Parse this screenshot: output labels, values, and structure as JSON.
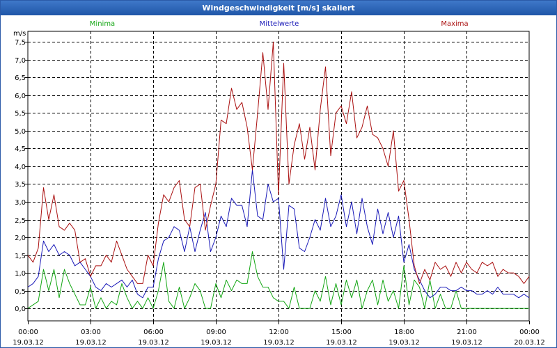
{
  "window": {
    "title": "Windgeschwindigkeit [m/s] skaliert"
  },
  "chart_data": {
    "type": "line",
    "title": "Windgeschwindigkeit [m/s] skaliert",
    "ylabel": "m/s",
    "xlabel": "",
    "ylim": [
      -0.35,
      7.8
    ],
    "xlim": [
      0,
      24
    ],
    "grid": true,
    "legend_position": "top",
    "y_ticks": [
      "0,0",
      "0,5",
      "1,0",
      "1,5",
      "2,0",
      "2,5",
      "3,0",
      "3,5",
      "4,0",
      "4,5",
      "5,0",
      "5,5",
      "6,0",
      "6,5",
      "7,0",
      "7,5"
    ],
    "y_tick_values": [
      0,
      0.5,
      1,
      1.5,
      2,
      2.5,
      3,
      3.5,
      4,
      4.5,
      5,
      5.5,
      6,
      6.5,
      7,
      7.5
    ],
    "x_tick_times": [
      "00:00",
      "03:00",
      "06:00",
      "09:00",
      "12:00",
      "15:00",
      "18:00",
      "21:00",
      "00:00"
    ],
    "x_tick_dates": [
      "19.03.12",
      "19.03.12",
      "19.03.12",
      "19.03.12",
      "19.03.12",
      "19.03.12",
      "19.03.12",
      "19.03.12",
      "20.03.12"
    ],
    "x_tick_values": [
      0,
      3,
      6,
      9,
      12,
      15,
      18,
      21,
      24
    ],
    "series": [
      {
        "name": "Minima",
        "color": "#13a613",
        "x": [
          0,
          0.5,
          0.75,
          1,
          1.25,
          1.5,
          1.75,
          2,
          2.25,
          2.5,
          2.75,
          3,
          3.25,
          3.5,
          3.75,
          4,
          4.25,
          4.5,
          4.75,
          5,
          5.25,
          5.5,
          5.75,
          6,
          6.25,
          6.5,
          6.75,
          7,
          7.25,
          7.5,
          7.75,
          8,
          8.25,
          8.5,
          8.75,
          9,
          9.25,
          9.5,
          9.75,
          10,
          10.25,
          10.5,
          10.75,
          11,
          11.25,
          11.5,
          11.75,
          12,
          12.25,
          12.5,
          12.75,
          13,
          13.25,
          13.5,
          13.75,
          14,
          14.25,
          14.5,
          14.75,
          15,
          15.25,
          15.5,
          15.75,
          16,
          16.25,
          16.5,
          16.75,
          17,
          17.25,
          17.5,
          17.75,
          18,
          18.25,
          18.5,
          18.75,
          19,
          19.25,
          19.5,
          19.75,
          20,
          20.25,
          20.5,
          20.75,
          21,
          22,
          23,
          24
        ],
        "values": [
          0.0,
          0.2,
          1.1,
          0.5,
          1.1,
          0.3,
          1.1,
          0.7,
          0.4,
          0.1,
          0.1,
          0.6,
          0.0,
          0.3,
          0.0,
          0.2,
          0.1,
          0.7,
          0.3,
          0.0,
          0.2,
          0.0,
          0.3,
          0.0,
          0.5,
          1.3,
          0.2,
          0.0,
          0.6,
          0.0,
          0.3,
          0.7,
          0.5,
          0.0,
          0.0,
          0.7,
          0.3,
          0.8,
          0.5,
          0.8,
          0.7,
          0.7,
          1.6,
          0.9,
          0.6,
          0.6,
          0.3,
          0.2,
          0.2,
          0.0,
          0.6,
          0.0,
          0.0,
          0.0,
          0.5,
          0.2,
          0.9,
          0.1,
          0.7,
          0.1,
          0.8,
          0.3,
          0.8,
          0.0,
          0.5,
          0.8,
          0.1,
          0.8,
          0.2,
          0.5,
          0.0,
          1.2,
          0.1,
          0.8,
          0.6,
          0.0,
          0.8,
          0.0,
          0.4,
          0.0,
          0.0,
          0.5,
          0.0,
          0.0,
          0.0,
          0.0,
          0.0
        ]
      },
      {
        "name": "Mittelwerte",
        "color": "#1a1ab8",
        "x": [
          0,
          0.25,
          0.5,
          0.75,
          1,
          1.25,
          1.5,
          1.75,
          2,
          2.25,
          2.5,
          2.75,
          3,
          3.25,
          3.5,
          3.75,
          4,
          4.25,
          4.5,
          4.75,
          5,
          5.25,
          5.5,
          5.75,
          6,
          6.25,
          6.5,
          6.75,
          7,
          7.25,
          7.5,
          7.75,
          8,
          8.25,
          8.5,
          8.75,
          9,
          9.25,
          9.5,
          9.75,
          10,
          10.25,
          10.5,
          10.75,
          11,
          11.25,
          11.5,
          11.75,
          12,
          12.25,
          12.5,
          12.75,
          13,
          13.25,
          13.5,
          13.75,
          14,
          14.25,
          14.5,
          14.75,
          15,
          15.25,
          15.5,
          15.75,
          16,
          16.25,
          16.5,
          16.75,
          17,
          17.25,
          17.5,
          17.75,
          18,
          18.25,
          18.5,
          18.75,
          19,
          19.25,
          19.5,
          19.75,
          20,
          20.25,
          20.5,
          20.75,
          21,
          21.25,
          21.5,
          21.75,
          22,
          22.25,
          22.5,
          22.75,
          23,
          23.25,
          23.5,
          23.75,
          24
        ],
        "values": [
          0.6,
          0.7,
          0.9,
          1.9,
          1.6,
          1.8,
          1.5,
          1.6,
          1.5,
          1.2,
          1.3,
          1.1,
          0.9,
          0.6,
          0.5,
          0.7,
          0.6,
          0.7,
          0.8,
          0.6,
          0.8,
          0.4,
          0.3,
          0.6,
          0.6,
          1.4,
          1.9,
          2.0,
          2.3,
          2.2,
          1.6,
          2.3,
          1.6,
          2.2,
          2.7,
          1.6,
          2.0,
          2.6,
          2.3,
          3.1,
          2.9,
          2.9,
          2.3,
          3.9,
          2.6,
          2.5,
          3.5,
          3.0,
          3.1,
          1.1,
          2.9,
          2.8,
          1.7,
          1.6,
          2.0,
          2.5,
          2.2,
          3.1,
          2.3,
          2.6,
          3.2,
          2.3,
          3.0,
          2.1,
          3.1,
          2.3,
          1.8,
          2.8,
          2.1,
          2.7,
          2.0,
          2.6,
          1.3,
          1.8,
          1.1,
          0.8,
          0.5,
          0.3,
          0.4,
          0.6,
          0.6,
          0.5,
          0.5,
          0.6,
          0.5,
          0.5,
          0.4,
          0.4,
          0.5,
          0.4,
          0.6,
          0.4,
          0.4,
          0.4,
          0.3,
          0.4,
          0.3
        ]
      },
      {
        "name": "Maxima",
        "color": "#aa1010",
        "x": [
          0,
          0.25,
          0.5,
          0.75,
          1,
          1.25,
          1.5,
          1.75,
          2,
          2.25,
          2.5,
          2.75,
          3,
          3.25,
          3.5,
          3.75,
          4,
          4.25,
          4.5,
          4.75,
          5,
          5.25,
          5.5,
          5.75,
          6,
          6.25,
          6.5,
          6.75,
          7,
          7.25,
          7.5,
          7.75,
          8,
          8.25,
          8.5,
          8.75,
          9,
          9.25,
          9.5,
          9.75,
          10,
          10.25,
          10.5,
          10.75,
          11,
          11.25,
          11.5,
          11.75,
          12,
          12.25,
          12.5,
          12.75,
          13,
          13.25,
          13.5,
          13.75,
          14,
          14.25,
          14.5,
          14.75,
          15,
          15.25,
          15.5,
          15.75,
          16,
          16.25,
          16.5,
          16.75,
          17,
          17.25,
          17.5,
          17.75,
          18,
          18.25,
          18.5,
          18.75,
          19,
          19.25,
          19.5,
          19.75,
          20,
          20.25,
          20.5,
          20.75,
          21,
          21.25,
          21.5,
          21.75,
          22,
          22.25,
          22.5,
          22.75,
          23,
          23.25,
          23.5,
          23.75,
          24
        ],
        "values": [
          1.5,
          1.3,
          1.7,
          3.4,
          2.5,
          3.2,
          2.3,
          2.2,
          2.4,
          2.2,
          1.3,
          1.4,
          0.9,
          1.2,
          1.2,
          1.5,
          1.3,
          1.9,
          1.5,
          1.1,
          0.9,
          0.7,
          0.7,
          1.5,
          1.2,
          2.4,
          3.2,
          3.0,
          3.4,
          3.6,
          2.5,
          2.3,
          3.4,
          3.5,
          2.2,
          2.9,
          3.5,
          5.3,
          5.2,
          6.2,
          5.6,
          5.8,
          5.1,
          3.9,
          5.5,
          7.2,
          5.6,
          7.5,
          3.2,
          6.9,
          3.5,
          4.6,
          5.2,
          4.2,
          5.1,
          3.9,
          5.6,
          6.8,
          4.3,
          5.5,
          5.7,
          5.2,
          6.1,
          4.8,
          5.1,
          5.7,
          4.9,
          4.8,
          4.5,
          4.0,
          5.0,
          3.3,
          3.6,
          2.5,
          1.2,
          0.7,
          1.1,
          0.8,
          1.3,
          1.1,
          1.2,
          0.9,
          1.3,
          1.0,
          1.3,
          1.1,
          1.0,
          1.3,
          1.2,
          1.3,
          0.9,
          1.1,
          1.0,
          1.0,
          0.9,
          0.7,
          0.9
        ]
      }
    ]
  }
}
